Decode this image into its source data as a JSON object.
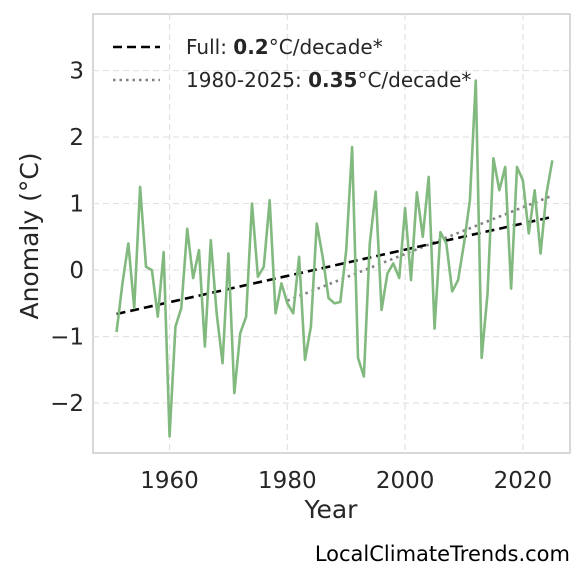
{
  "chart_data": {
    "type": "line",
    "xlabel": "Year",
    "ylabel": "Anomaly (°C)",
    "xlim": [
      1947,
      2028
    ],
    "ylim": [
      -2.75,
      3.85
    ],
    "xticks": [
      1960,
      1980,
      2000,
      2020
    ],
    "yticks": [
      -2,
      -1,
      0,
      1,
      2,
      3
    ],
    "grid": true,
    "legend_position": "top-left",
    "colors": {
      "series": "#82b97f",
      "trend_full": "#000000",
      "trend_recent": "#808080"
    },
    "series": [
      {
        "x": [
          1951,
          1952,
          1953,
          1954,
          1955,
          1956,
          1957,
          1958,
          1959,
          1960,
          1961,
          1962,
          1963,
          1964,
          1965,
          1966,
          1967,
          1968,
          1969,
          1970,
          1971,
          1972,
          1973,
          1974,
          1975,
          1976,
          1977,
          1978,
          1979,
          1980,
          1981,
          1982,
          1983,
          1984,
          1985,
          1986,
          1987,
          1988,
          1989,
          1990,
          1991,
          1992,
          1993,
          1994,
          1995,
          1996,
          1997,
          1998,
          1999,
          2000,
          2001,
          2002,
          2003,
          2004,
          2005,
          2006,
          2007,
          2008,
          2009,
          2010,
          2011,
          2012,
          2013,
          2014,
          2015,
          2016,
          2017,
          2018,
          2019,
          2020,
          2021,
          2022,
          2023,
          2024,
          2025
        ],
        "values": [
          -0.93,
          -0.2,
          0.4,
          -0.57,
          1.25,
          0.05,
          0.0,
          -0.7,
          0.27,
          -2.5,
          -0.85,
          -0.57,
          0.62,
          -0.12,
          0.3,
          -1.15,
          0.45,
          -0.65,
          -1.4,
          0.25,
          -1.85,
          -0.95,
          -0.7,
          1.0,
          -0.1,
          0.05,
          1.05,
          -0.65,
          -0.2,
          -0.5,
          -0.65,
          0.2,
          -1.35,
          -0.85,
          0.7,
          0.2,
          -0.42,
          -0.5,
          -0.48,
          0.3,
          1.85,
          -1.32,
          -1.6,
          0.4,
          1.18,
          -0.6,
          -0.05,
          0.1,
          -0.12,
          0.93,
          -0.15,
          1.17,
          0.5,
          1.4,
          -0.88,
          0.57,
          0.4,
          -0.32,
          -0.15,
          0.4,
          1.05,
          2.85,
          -1.32,
          -0.35,
          1.68,
          1.2,
          1.55,
          -0.28,
          1.55,
          1.35,
          0.55,
          1.2,
          0.25,
          1.15,
          1.65
        ]
      }
    ],
    "trends": [
      {
        "x": [
          1951,
          2025
        ],
        "values": [
          -0.66,
          0.8
        ]
      },
      {
        "x": [
          1980,
          2025
        ],
        "values": [
          -0.46,
          1.12
        ]
      }
    ],
    "legend": [
      {
        "prefix": "Full: ",
        "value": "0.2",
        "suffix": "°C/decade*"
      },
      {
        "prefix": "1980-2025: ",
        "value": "0.35",
        "suffix": "°C/decade*"
      }
    ]
  },
  "credit": "LocalClimateTrends.com"
}
